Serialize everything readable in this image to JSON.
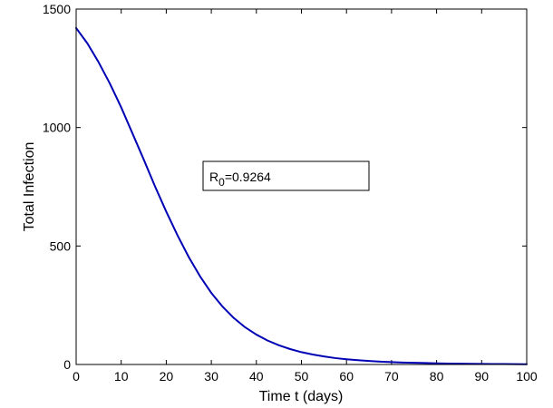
{
  "chart_data": {
    "type": "line",
    "xlabel": "Time t (days)",
    "ylabel": "Total Infection",
    "xlim": [
      0,
      100
    ],
    "ylim": [
      0,
      1500
    ],
    "xticks": [
      0,
      10,
      20,
      30,
      40,
      50,
      60,
      70,
      80,
      90,
      100
    ],
    "yticks": [
      0,
      500,
      1000,
      1500
    ],
    "grid": false,
    "series": [
      {
        "color": "#0000b4",
        "x": [
          0,
          2.5,
          5,
          7.5,
          10,
          12.5,
          15,
          17.5,
          20,
          22.5,
          25,
          27.5,
          30,
          32.5,
          35,
          37.5,
          40,
          42.5,
          45,
          47.5,
          50,
          52.5,
          55,
          57.5,
          60,
          62.5,
          65,
          67.5,
          70,
          72.5,
          75,
          77.5,
          80,
          82.5,
          85,
          87.5,
          90,
          92.5,
          95,
          97.5,
          100
        ],
        "y": [
          1420,
          1355,
          1275,
          1185,
          1085,
          975,
          865,
          752,
          645,
          545,
          453,
          372,
          302,
          244,
          196,
          157,
          126,
          101,
          81,
          65,
          52,
          42,
          34,
          27,
          22,
          18,
          15,
          12,
          10,
          8,
          7,
          6,
          5,
          4,
          3.5,
          3,
          2.5,
          2,
          1.8,
          1.5,
          1.2
        ]
      }
    ],
    "annotation": {
      "base": "R",
      "subscript": "0",
      "value_text": "=0.9264"
    }
  }
}
